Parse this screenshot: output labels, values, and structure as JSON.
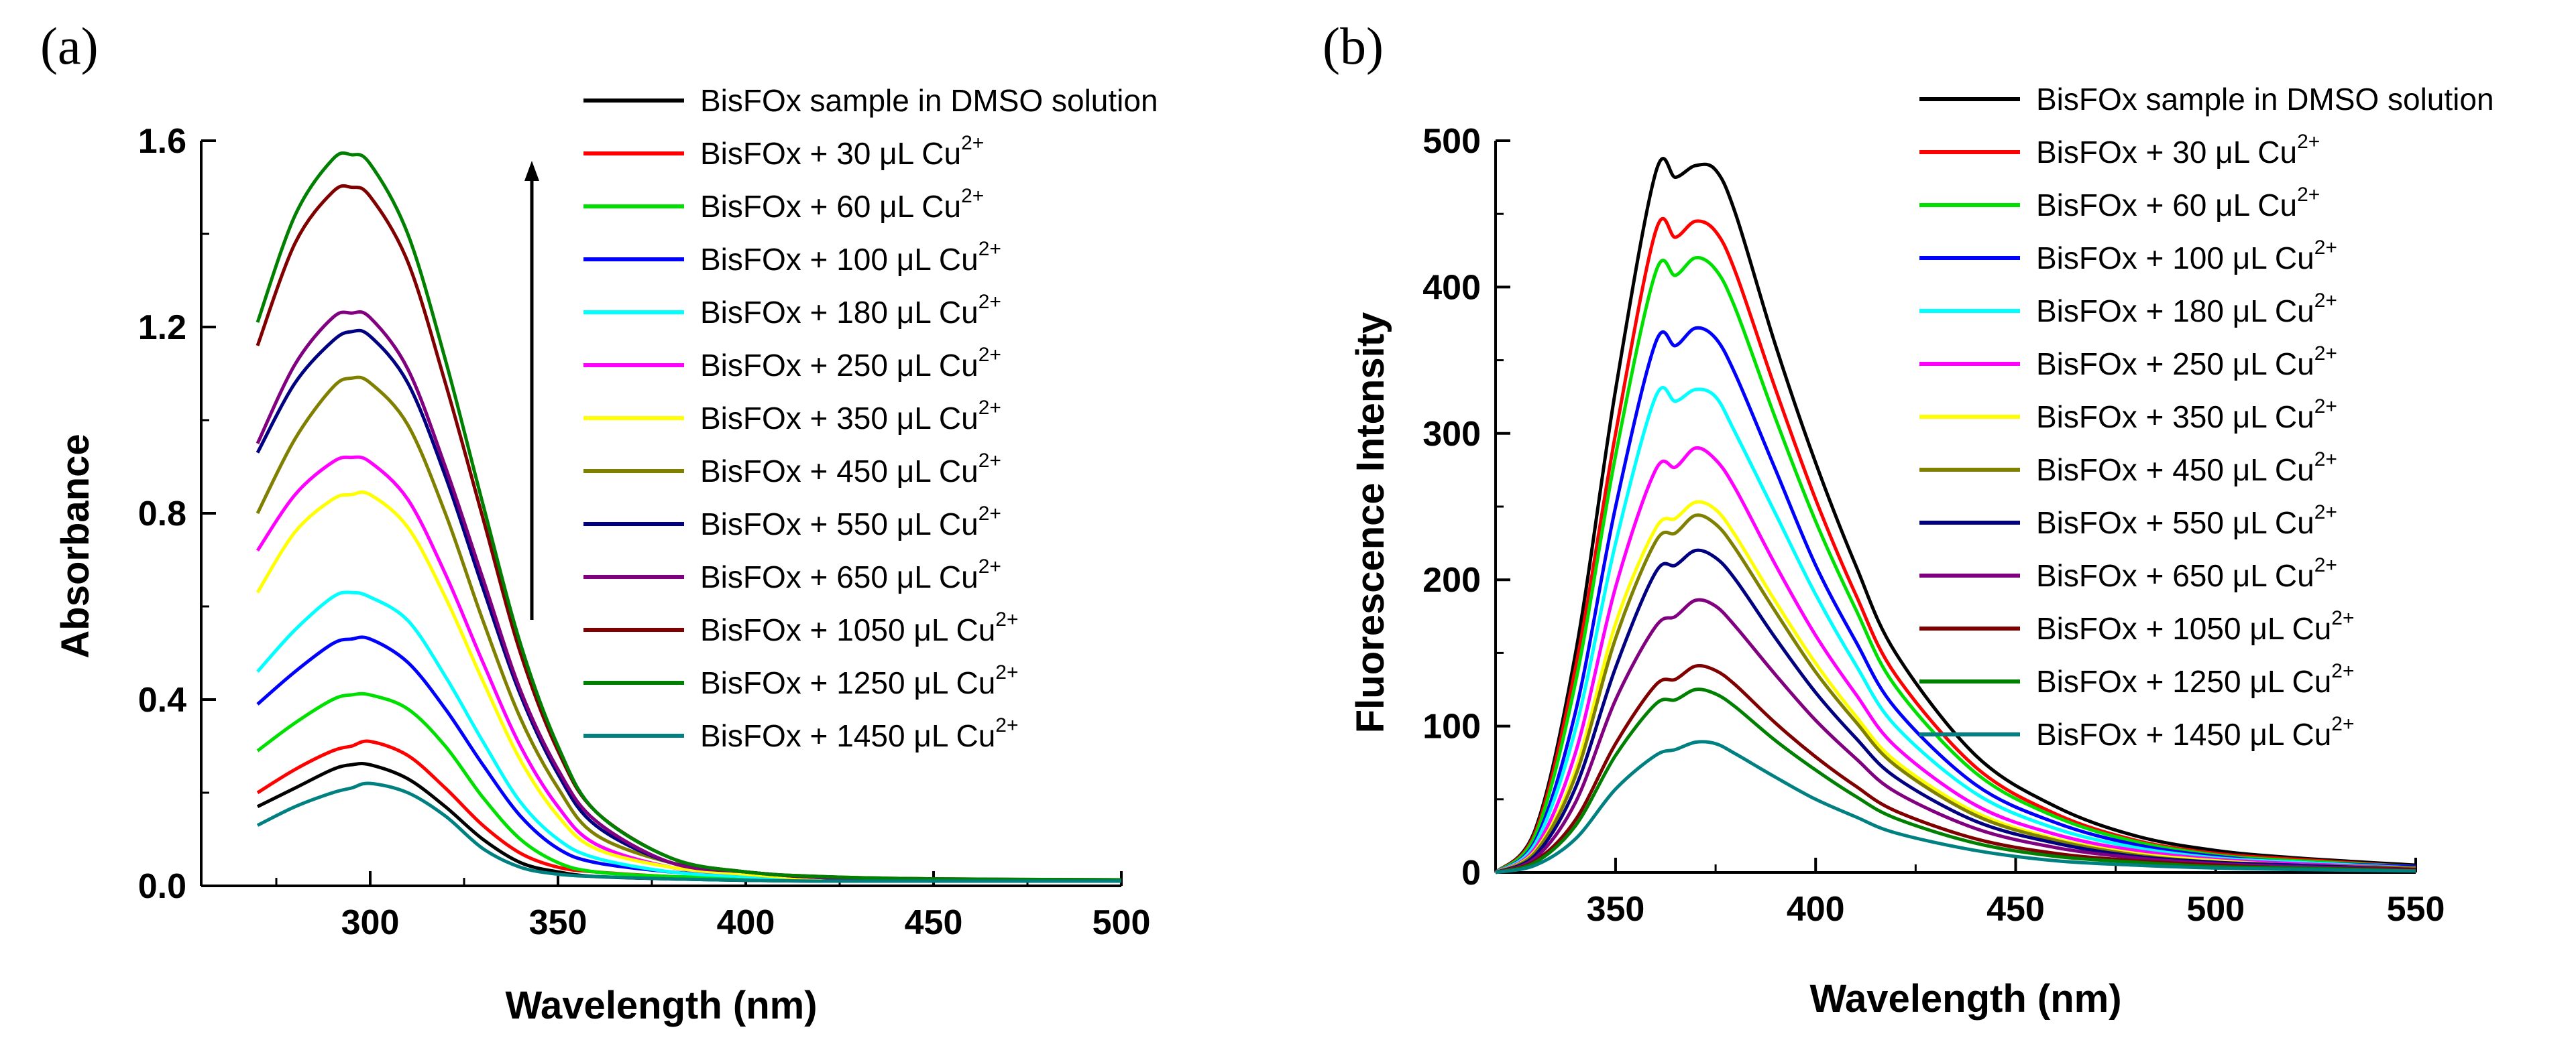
{
  "chart_data": [
    {
      "panel": "(a)",
      "type": "line",
      "xlabel": "Wavelength (nm)",
      "ylabel": "Absorbance",
      "xlim": [
        255,
        500
      ],
      "ylim": [
        0.0,
        1.6
      ],
      "x_ticks": [
        300,
        350,
        400,
        450,
        500
      ],
      "y_ticks": [
        "0.0",
        "0.4",
        "0.8",
        "1.2",
        "1.6"
      ],
      "grid": false,
      "legend_position": "right",
      "annotation": "upward arrow indicating increasing absorbance with Cu2+ addition",
      "x": [
        270,
        280,
        290,
        295,
        300,
        310,
        320,
        330,
        340,
        350,
        360,
        380,
        400,
        420,
        450,
        500
      ],
      "series": [
        {
          "name": "BisFOx sample in DMSO solution",
          "color": "#000000",
          "values": [
            0.17,
            0.21,
            0.25,
            0.26,
            0.26,
            0.23,
            0.17,
            0.1,
            0.05,
            0.03,
            0.02,
            0.015,
            0.012,
            0.01,
            0.01,
            0.01
          ]
        },
        {
          "name": "BisFOx + 30 μL Cu2+",
          "color": "#ff0000",
          "values": [
            0.2,
            0.25,
            0.29,
            0.3,
            0.31,
            0.28,
            0.21,
            0.13,
            0.07,
            0.04,
            0.03,
            0.02,
            0.015,
            0.015,
            0.013,
            0.012
          ]
        },
        {
          "name": "BisFOx + 60 μL Cu2+",
          "color": "#00e000",
          "values": [
            0.29,
            0.35,
            0.4,
            0.41,
            0.41,
            0.38,
            0.3,
            0.19,
            0.1,
            0.05,
            0.03,
            0.02,
            0.018,
            0.015,
            0.013,
            0.012
          ]
        },
        {
          "name": "BisFOx + 100 μL Cu2+",
          "color": "#0000ff",
          "values": [
            0.39,
            0.46,
            0.52,
            0.53,
            0.53,
            0.48,
            0.38,
            0.26,
            0.15,
            0.08,
            0.05,
            0.03,
            0.02,
            0.015,
            0.013,
            0.012
          ]
        },
        {
          "name": "BisFOx + 180 μL Cu2+",
          "color": "#00ffff",
          "values": [
            0.46,
            0.55,
            0.62,
            0.63,
            0.62,
            0.57,
            0.45,
            0.31,
            0.18,
            0.1,
            0.06,
            0.03,
            0.02,
            0.015,
            0.013,
            0.012
          ]
        },
        {
          "name": "BisFOx + 250 μL Cu2+",
          "color": "#ff00ff",
          "values": [
            0.72,
            0.84,
            0.91,
            0.92,
            0.91,
            0.83,
            0.67,
            0.48,
            0.3,
            0.17,
            0.09,
            0.04,
            0.025,
            0.015,
            0.013,
            0.012
          ]
        },
        {
          "name": "BisFOx + 350 μL Cu2+",
          "color": "#ffff00",
          "values": [
            0.63,
            0.76,
            0.83,
            0.84,
            0.84,
            0.77,
            0.62,
            0.44,
            0.27,
            0.15,
            0.08,
            0.04,
            0.025,
            0.015,
            0.013,
            0.012
          ]
        },
        {
          "name": "BisFOx + 450 μL Cu2+",
          "color": "#808000",
          "values": [
            0.8,
            0.96,
            1.07,
            1.09,
            1.08,
            0.99,
            0.8,
            0.57,
            0.36,
            0.21,
            0.11,
            0.05,
            0.03,
            0.018,
            0.013,
            0.012
          ]
        },
        {
          "name": "BisFOx + 550 μL Cu2+",
          "color": "#000080",
          "values": [
            0.93,
            1.08,
            1.17,
            1.19,
            1.18,
            1.08,
            0.88,
            0.64,
            0.41,
            0.24,
            0.13,
            0.05,
            0.03,
            0.018,
            0.013,
            0.012
          ]
        },
        {
          "name": "BisFOx + 650 μL Cu2+",
          "color": "#800080",
          "values": [
            0.95,
            1.12,
            1.22,
            1.23,
            1.22,
            1.11,
            0.9,
            0.66,
            0.42,
            0.25,
            0.14,
            0.05,
            0.03,
            0.018,
            0.013,
            0.012
          ]
        },
        {
          "name": "BisFOx + 1050 μL Cu2+",
          "color": "#800000",
          "values": [
            1.16,
            1.38,
            1.49,
            1.5,
            1.48,
            1.34,
            1.08,
            0.79,
            0.5,
            0.29,
            0.16,
            0.06,
            0.03,
            0.02,
            0.015,
            0.013
          ]
        },
        {
          "name": "BisFOx + 1250 μL Cu2+",
          "color": "#008000",
          "values": [
            1.21,
            1.44,
            1.56,
            1.57,
            1.55,
            1.4,
            1.13,
            0.82,
            0.52,
            0.3,
            0.16,
            0.06,
            0.03,
            0.02,
            0.015,
            0.013
          ]
        },
        {
          "name": "BisFOx + 1450 μL Cu2+",
          "color": "#008080",
          "values": [
            0.13,
            0.17,
            0.2,
            0.21,
            0.22,
            0.2,
            0.15,
            0.08,
            0.04,
            0.025,
            0.02,
            0.015,
            0.012,
            0.01,
            0.01,
            0.01
          ]
        }
      ]
    },
    {
      "panel": "(b)",
      "type": "line",
      "xlabel": "Wavelength (nm)",
      "ylabel": "Fluorescence Intensity",
      "xlim": [
        320,
        550
      ],
      "ylim": [
        0,
        500
      ],
      "x_ticks": [
        350,
        400,
        450,
        500,
        550
      ],
      "y_ticks": [
        "0",
        "100",
        "200",
        "300",
        "400",
        "500"
      ],
      "grid": false,
      "legend_position": "right",
      "x": [
        320,
        330,
        340,
        350,
        360,
        365,
        370,
        375,
        380,
        390,
        400,
        410,
        420,
        440,
        460,
        480,
        500,
        520,
        550
      ],
      "series": [
        {
          "name": "BisFOx sample in DMSO solution",
          "color": "#000000",
          "values": [
            0,
            30,
            150,
            330,
            478,
            475,
            483,
            480,
            450,
            360,
            280,
            210,
            150,
            80,
            45,
            25,
            15,
            10,
            5
          ]
        },
        {
          "name": "BisFOx + 30 μL Cu2+",
          "color": "#ff0000",
          "values": [
            0,
            28,
            140,
            300,
            438,
            434,
            445,
            438,
            410,
            330,
            255,
            190,
            135,
            72,
            40,
            22,
            13,
            9,
            4
          ]
        },
        {
          "name": "BisFOx + 60 μL Cu2+",
          "color": "#00e000",
          "values": [
            0,
            26,
            130,
            285,
            410,
            408,
            420,
            412,
            385,
            310,
            240,
            180,
            127,
            68,
            38,
            21,
            12,
            8,
            4
          ]
        },
        {
          "name": "BisFOx + 100 μL Cu2+",
          "color": "#0000ff",
          "values": [
            0,
            22,
            110,
            250,
            362,
            360,
            372,
            365,
            340,
            275,
            210,
            158,
            112,
            60,
            34,
            19,
            11,
            7,
            4
          ]
        },
        {
          "name": "BisFOx + 180 μL Cu2+",
          "color": "#00ffff",
          "values": [
            0,
            20,
            98,
            225,
            325,
            322,
            330,
            325,
            300,
            245,
            190,
            142,
            100,
            54,
            30,
            17,
            10,
            7,
            3
          ]
        },
        {
          "name": "BisFOx + 250 μL Cu2+",
          "color": "#ff00ff",
          "values": [
            0,
            17,
            82,
            195,
            275,
            277,
            290,
            282,
            262,
            210,
            162,
            122,
            86,
            46,
            26,
            15,
            9,
            6,
            3
          ]
        },
        {
          "name": "BisFOx + 350 μL Cu2+",
          "color": "#ffff00",
          "values": [
            0,
            15,
            70,
            170,
            235,
            242,
            253,
            248,
            230,
            185,
            143,
            107,
            76,
            41,
            23,
            13,
            8,
            5,
            3
          ]
        },
        {
          "name": "BisFOx + 450 μL Cu2+",
          "color": "#808000",
          "values": [
            0,
            14,
            66,
            160,
            226,
            232,
            244,
            238,
            221,
            178,
            137,
            103,
            73,
            39,
            22,
            12,
            7,
            5,
            3
          ]
        },
        {
          "name": "BisFOx + 550 μL Cu2+",
          "color": "#000080",
          "values": [
            0,
            12,
            58,
            140,
            205,
            210,
            220,
            215,
            200,
            160,
            123,
            92,
            65,
            35,
            20,
            11,
            7,
            5,
            2
          ]
        },
        {
          "name": "BisFOx + 650 μL Cu2+",
          "color": "#800080",
          "values": [
            0,
            10,
            48,
            118,
            168,
            175,
            186,
            182,
            168,
            135,
            104,
            78,
            55,
            30,
            17,
            10,
            6,
            4,
            2
          ]
        },
        {
          "name": "BisFOx + 1050 μL Cu2+",
          "color": "#800000",
          "values": [
            0,
            8,
            36,
            88,
            128,
            132,
            141,
            138,
            128,
            102,
            79,
            59,
            42,
            23,
            13,
            8,
            5,
            3,
            2
          ]
        },
        {
          "name": "BisFOx + 1250 μL Cu2+",
          "color": "#008000",
          "values": [
            0,
            7,
            32,
            80,
            115,
            118,
            125,
            122,
            113,
            90,
            70,
            52,
            37,
            20,
            11,
            7,
            4,
            3,
            1
          ]
        },
        {
          "name": "BisFOx + 1450 μL Cu2+",
          "color": "#008080",
          "values": [
            0,
            5,
            23,
            57,
            80,
            84,
            89,
            88,
            81,
            65,
            50,
            38,
            27,
            15,
            8,
            5,
            3,
            2,
            1
          ]
        }
      ]
    }
  ]
}
